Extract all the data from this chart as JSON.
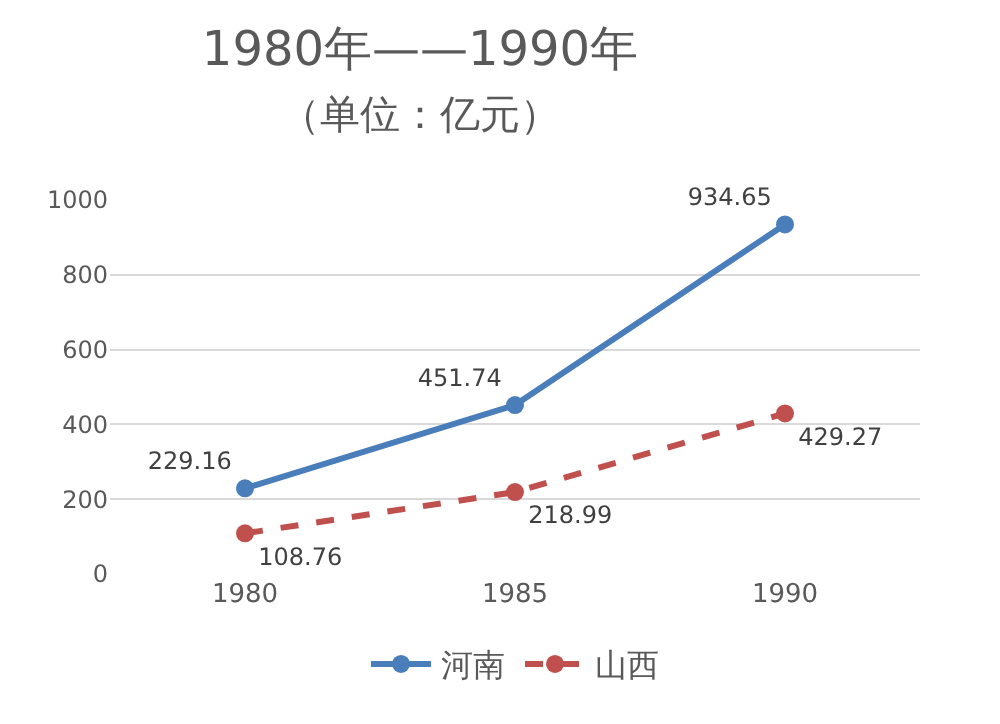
{
  "chart_data": {
    "type": "line",
    "title": "1980年——1990年",
    "subtitle": "（单位：亿元）",
    "categories": [
      "1980",
      "1985",
      "1990"
    ],
    "series": [
      {
        "name": "河南",
        "color": "#4a7ebb",
        "values": [
          229.16,
          451.74,
          934.65
        ],
        "line_style": "solid"
      },
      {
        "name": "山西",
        "color": "#c0504d",
        "values": [
          108.76,
          218.99,
          429.27
        ],
        "line_style": "dashed"
      }
    ],
    "ylim": [
      0,
      1000
    ],
    "yticks": [
      0,
      200,
      400,
      600,
      800,
      1000
    ],
    "grid": "y",
    "legend": "bottom",
    "marker": "circle",
    "data_labels": true
  }
}
